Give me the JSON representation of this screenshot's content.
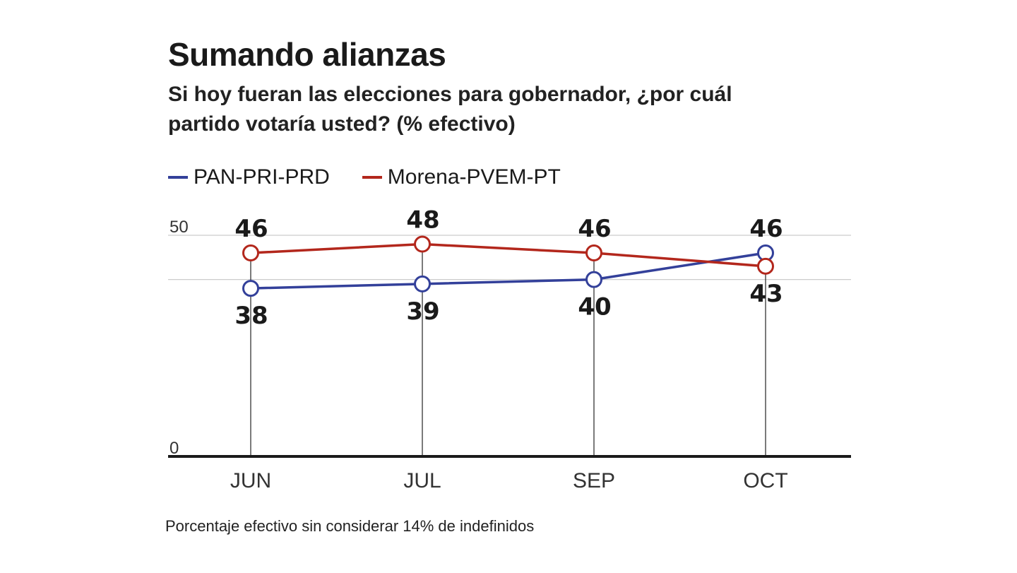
{
  "chart_data": {
    "type": "line",
    "title": "Sumando alianzas",
    "subtitle": "Si hoy fueran las elecciones para gobernador, ¿por cuál partido votaría usted? (% efectivo)",
    "categories": [
      "JUN",
      "JUL",
      "SEP",
      "OCT"
    ],
    "series": [
      {
        "name": "PAN-PRI-PRD",
        "color": "#33409a",
        "values": [
          38,
          39,
          40,
          46
        ]
      },
      {
        "name": "Morena-PVEM-PT",
        "color": "#b3271c",
        "values": [
          46,
          48,
          46,
          43
        ]
      }
    ],
    "ylim": [
      0,
      50
    ],
    "yticks": [
      0,
      50
    ],
    "gridlines": [
      50,
      40
    ],
    "legend_position": "top-left",
    "footnote": "Porcentaje efectivo sin considerar 14% de indefinidos"
  }
}
